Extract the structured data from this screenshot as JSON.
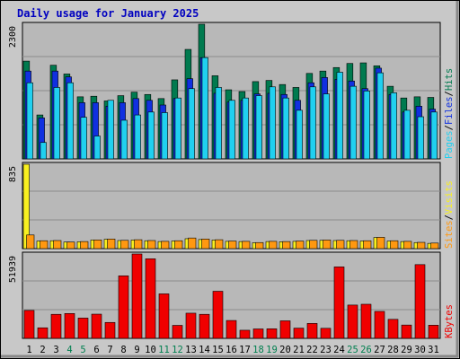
{
  "title": "Daily usage for January 2025",
  "colors": {
    "background": "#c8c8c8",
    "plot_bg": "#b8b8b8",
    "hits": "#007a4f",
    "files": "#1030e0",
    "pages": "#20d0f0",
    "visits": "#f8f020",
    "sites": "#ff9810",
    "kbytes": "#f00000",
    "weekend_label": "#007f4f",
    "title_color": "#0000c0"
  },
  "chart_data": [
    {
      "type": "bar",
      "panel": "pages-files-hits",
      "ymax_label": "2300",
      "ylim": [
        0,
        2300
      ],
      "grid": true,
      "legend": [
        {
          "name": "Pages",
          "color": "#20d0f0"
        },
        {
          "name": "Files",
          "color": "#1030e0"
        },
        {
          "name": "Hits",
          "color": "#007a4f"
        }
      ],
      "categories": [
        "1",
        "2",
        "3",
        "4",
        "5",
        "6",
        "7",
        "8",
        "9",
        "10",
        "11",
        "12",
        "13",
        "14",
        "15",
        "16",
        "17",
        "18",
        "19",
        "20",
        "21",
        "22",
        "23",
        "24",
        "25",
        "26",
        "27",
        "28",
        "29",
        "30",
        "31"
      ],
      "series": [
        {
          "name": "Hits",
          "values": [
            1670,
            750,
            1600,
            1450,
            1060,
            1070,
            990,
            1080,
            1140,
            1100,
            1030,
            1350,
            1870,
            2300,
            1420,
            1180,
            1150,
            1320,
            1340,
            1270,
            1220,
            1460,
            1500,
            1560,
            1630,
            1640,
            1590,
            1240,
            1040,
            1060,
            1050
          ]
        },
        {
          "name": "Files",
          "values": [
            1500,
            700,
            1500,
            1400,
            960,
            960,
            900,
            960,
            1030,
            1000,
            920,
            1030,
            1370,
            1730,
            1120,
            970,
            1000,
            1110,
            1120,
            1100,
            1000,
            1300,
            1390,
            1360,
            1330,
            1200,
            1550,
            1100,
            800,
            900,
            850
          ]
        },
        {
          "name": "Pages",
          "values": [
            1300,
            280,
            1220,
            1300,
            710,
            390,
            1000,
            660,
            750,
            800,
            790,
            1040,
            1200,
            1730,
            1220,
            1000,
            1040,
            1080,
            1230,
            1040,
            830,
            1230,
            1110,
            1480,
            1240,
            1160,
            1470,
            1130,
            830,
            720,
            800
          ]
        }
      ]
    },
    {
      "type": "bar",
      "panel": "sites-visits",
      "ymax_label": "835",
      "ylim": [
        0,
        835
      ],
      "grid": true,
      "legend": [
        {
          "name": "Sites",
          "color": "#ff9810"
        },
        {
          "name": "Visits",
          "color": "#f8f020"
        }
      ],
      "categories": [
        "1",
        "2",
        "3",
        "4",
        "5",
        "6",
        "7",
        "8",
        "9",
        "10",
        "11",
        "12",
        "13",
        "14",
        "15",
        "16",
        "17",
        "18",
        "19",
        "20",
        "21",
        "22",
        "23",
        "24",
        "25",
        "26",
        "27",
        "28",
        "29",
        "30",
        "31"
      ],
      "series": [
        {
          "name": "Visits",
          "values": [
            835,
            75,
            78,
            65,
            68,
            85,
            92,
            80,
            85,
            78,
            70,
            75,
            98,
            90,
            85,
            72,
            70,
            58,
            70,
            68,
            72,
            80,
            82,
            80,
            78,
            75,
            110,
            75,
            70,
            60,
            52
          ]
        },
        {
          "name": "Sites",
          "values": [
            135,
            78,
            80,
            65,
            70,
            86,
            95,
            82,
            88,
            80,
            72,
            78,
            105,
            95,
            88,
            75,
            72,
            60,
            72,
            70,
            75,
            82,
            85,
            82,
            80,
            78,
            112,
            78,
            72,
            62,
            55
          ]
        }
      ]
    },
    {
      "type": "bar",
      "panel": "kbytes",
      "ymax_label": "51939",
      "ylim": [
        0,
        51939
      ],
      "grid": true,
      "legend": [
        {
          "name": "KBytes",
          "color": "#f00000"
        }
      ],
      "categories": [
        "1",
        "2",
        "3",
        "4",
        "5",
        "6",
        "7",
        "8",
        "9",
        "10",
        "11",
        "12",
        "13",
        "14",
        "15",
        "16",
        "17",
        "18",
        "19",
        "20",
        "21",
        "22",
        "23",
        "24",
        "25",
        "26",
        "27",
        "28",
        "29",
        "30",
        "31"
      ],
      "series": [
        {
          "name": "KBytes",
          "values": [
            17200,
            6500,
            14800,
            15300,
            12500,
            14900,
            9800,
            38500,
            51939,
            49000,
            27400,
            8000,
            15500,
            14800,
            29000,
            11000,
            5000,
            5800,
            5900,
            10800,
            6300,
            9200,
            6200,
            44000,
            20500,
            21000,
            16600,
            11700,
            8200,
            45400,
            8100
          ]
        }
      ]
    }
  ],
  "x_labels": [
    {
      "label": "1",
      "weekend": false
    },
    {
      "label": "2",
      "weekend": false
    },
    {
      "label": "3",
      "weekend": false
    },
    {
      "label": "4",
      "weekend": true
    },
    {
      "label": "5",
      "weekend": true
    },
    {
      "label": "6",
      "weekend": false
    },
    {
      "label": "7",
      "weekend": false
    },
    {
      "label": "8",
      "weekend": false
    },
    {
      "label": "9",
      "weekend": false
    },
    {
      "label": "10",
      "weekend": false
    },
    {
      "label": "11",
      "weekend": true
    },
    {
      "label": "12",
      "weekend": true
    },
    {
      "label": "13",
      "weekend": false
    },
    {
      "label": "14",
      "weekend": false
    },
    {
      "label": "15",
      "weekend": false
    },
    {
      "label": "16",
      "weekend": false
    },
    {
      "label": "17",
      "weekend": false
    },
    {
      "label": "18",
      "weekend": true
    },
    {
      "label": "19",
      "weekend": true
    },
    {
      "label": "20",
      "weekend": false
    },
    {
      "label": "21",
      "weekend": false
    },
    {
      "label": "22",
      "weekend": false
    },
    {
      "label": "23",
      "weekend": false
    },
    {
      "label": "24",
      "weekend": false
    },
    {
      "label": "25",
      "weekend": true
    },
    {
      "label": "26",
      "weekend": true
    },
    {
      "label": "27",
      "weekend": false
    },
    {
      "label": "28",
      "weekend": false
    },
    {
      "label": "29",
      "weekend": false
    },
    {
      "label": "30",
      "weekend": false
    },
    {
      "label": "31",
      "weekend": false
    }
  ],
  "legend_separator": "/"
}
